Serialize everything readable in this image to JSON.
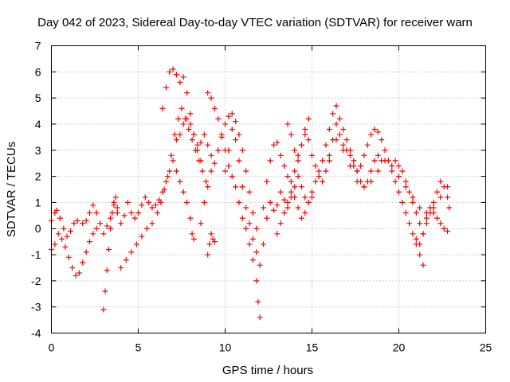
{
  "chart_data": {
    "type": "scatter",
    "title": "Day 042 of 2023, Sidereal Day-to-day VTEC variation (SDTVAR) for receiver warn",
    "xlabel": "GPS time / hours",
    "ylabel": "SDTVAR / TECUs",
    "xlim": [
      0,
      25
    ],
    "ylim": [
      -4,
      7
    ],
    "xticks": [
      0,
      5,
      10,
      15,
      20,
      25
    ],
    "yticks": [
      -4,
      -3,
      -2,
      -1,
      0,
      1,
      2,
      3,
      4,
      5,
      6,
      7
    ],
    "grid": true,
    "marker": "+",
    "color": "#ff0000",
    "series": [
      {
        "name": "trace-1",
        "points": [
          [
            0.0,
            -0.8
          ],
          [
            0.2,
            -0.6
          ],
          [
            0.4,
            -0.2
          ],
          [
            0.6,
            -0.4
          ],
          [
            0.8,
            -0.7
          ],
          [
            1.0,
            -1.1
          ],
          [
            1.2,
            -1.5
          ],
          [
            1.4,
            -1.8
          ],
          [
            1.6,
            -1.7
          ],
          [
            1.8,
            -1.3
          ],
          [
            2.0,
            -0.9
          ],
          [
            2.2,
            -0.5
          ],
          [
            2.4,
            -0.2
          ],
          [
            2.6,
            0.0
          ]
        ]
      },
      {
        "name": "trace-2",
        "points": [
          [
            0.0,
            0.3
          ],
          [
            0.2,
            0.6
          ],
          [
            0.3,
            0.7
          ],
          [
            0.5,
            0.4
          ],
          [
            0.7,
            0.0
          ],
          [
            0.9,
            -0.3
          ],
          [
            1.1,
            -0.1
          ],
          [
            1.3,
            0.2
          ],
          [
            1.5,
            0.3
          ],
          [
            1.8,
            0.2
          ],
          [
            2.0,
            0.3
          ]
        ]
      },
      {
        "name": "trace-3",
        "points": [
          [
            2.2,
            0.6
          ],
          [
            2.4,
            0.9
          ],
          [
            2.6,
            0.6
          ],
          [
            2.8,
            0.2
          ],
          [
            3.0,
            -0.2
          ],
          [
            3.2,
            0.1
          ],
          [
            3.4,
            0.4
          ],
          [
            3.6,
            0.9
          ],
          [
            3.8,
            0.6
          ],
          [
            4.0,
            0.2
          ],
          [
            4.2,
            0.5
          ],
          [
            4.4,
            1.0
          ],
          [
            4.6,
            0.6
          ],
          [
            4.8,
            0.4
          ],
          [
            5.0,
            0.6
          ],
          [
            5.2,
            0.9
          ],
          [
            5.4,
            1.2
          ],
          [
            5.6,
            1.0
          ],
          [
            5.8,
            0.8
          ],
          [
            6.0,
            0.9
          ],
          [
            6.2,
            1.1
          ],
          [
            6.4,
            1.4
          ],
          [
            6.6,
            1.8
          ],
          [
            6.8,
            2.2
          ],
          [
            7.0,
            2.6
          ],
          [
            7.2,
            2.2
          ],
          [
            7.4,
            1.8
          ],
          [
            7.6,
            1.4
          ],
          [
            7.8,
            1.0
          ],
          [
            8.0,
            0.4
          ],
          [
            8.1,
            -0.2
          ]
        ]
      },
      {
        "name": "trace-4",
        "points": [
          [
            3.0,
            -3.1
          ],
          [
            3.1,
            -2.4
          ],
          [
            3.2,
            -1.6
          ],
          [
            3.3,
            -0.8
          ],
          [
            3.4,
            0.0
          ],
          [
            3.5,
            0.6
          ],
          [
            3.6,
            1.0
          ],
          [
            3.7,
            1.2
          ],
          [
            3.8,
            0.8
          ]
        ]
      },
      {
        "name": "trace-5",
        "points": [
          [
            4.0,
            -1.5
          ],
          [
            4.3,
            -1.2
          ],
          [
            4.6,
            -0.9
          ],
          [
            4.9,
            -0.6
          ],
          [
            5.2,
            -0.3
          ],
          [
            5.5,
            0.0
          ],
          [
            5.8,
            0.2
          ],
          [
            6.1,
            0.6
          ],
          [
            6.3,
            1.0
          ],
          [
            6.5,
            1.5
          ],
          [
            6.7,
            2.0
          ],
          [
            6.9,
            2.8
          ],
          [
            7.1,
            3.6
          ],
          [
            7.3,
            4.2
          ],
          [
            7.5,
            4.6
          ],
          [
            7.7,
            4.2
          ],
          [
            7.9,
            3.8
          ],
          [
            8.1,
            3.4
          ],
          [
            8.3,
            3.0
          ],
          [
            8.5,
            2.6
          ],
          [
            8.7,
            2.2
          ],
          [
            8.9,
            1.8
          ]
        ]
      },
      {
        "name": "trace-6",
        "points": [
          [
            6.4,
            4.6
          ],
          [
            6.6,
            5.4
          ],
          [
            6.8,
            6.0
          ],
          [
            7.0,
            6.1
          ],
          [
            7.2,
            5.9
          ],
          [
            7.4,
            5.6
          ],
          [
            7.6,
            5.8
          ],
          [
            7.8,
            5.2
          ],
          [
            8.0,
            4.4
          ],
          [
            8.2,
            3.6
          ],
          [
            8.4,
            3.0
          ],
          [
            8.6,
            2.6
          ]
        ]
      },
      {
        "name": "trace-7",
        "points": [
          [
            7.2,
            3.4
          ],
          [
            7.4,
            3.6
          ],
          [
            7.6,
            4.0
          ],
          [
            7.8,
            4.2
          ],
          [
            8.0,
            4.0
          ],
          [
            8.2,
            3.6
          ],
          [
            8.4,
            3.2
          ],
          [
            8.6,
            3.3
          ],
          [
            8.8,
            3.6
          ],
          [
            9.0,
            3.2
          ],
          [
            9.2,
            2.8
          ]
        ]
      },
      {
        "name": "trace-8",
        "points": [
          [
            8.2,
            -0.4
          ],
          [
            8.6,
            0.2
          ],
          [
            8.8,
            1.0
          ],
          [
            9.0,
            1.6
          ],
          [
            9.2,
            2.2
          ],
          [
            9.4,
            2.5
          ],
          [
            9.6,
            3.0
          ],
          [
            9.8,
            3.5
          ],
          [
            10.0,
            4.0
          ],
          [
            10.2,
            4.3
          ],
          [
            10.4,
            4.4
          ],
          [
            10.6,
            4.1
          ],
          [
            10.8,
            3.6
          ],
          [
            11.0,
            3.0
          ],
          [
            11.2,
            2.2
          ],
          [
            11.4,
            1.4
          ],
          [
            11.6,
            0.6
          ],
          [
            11.8,
            0.0
          ]
        ]
      },
      {
        "name": "trace-9",
        "points": [
          [
            9.0,
            -1.0
          ],
          [
            9.1,
            -0.6
          ],
          [
            9.2,
            -0.2
          ],
          [
            9.3,
            -0.4
          ],
          [
            9.4,
            -0.5
          ]
        ]
      },
      {
        "name": "trace-10",
        "points": [
          [
            9.0,
            5.2
          ],
          [
            9.2,
            5.0
          ],
          [
            9.4,
            4.6
          ],
          [
            9.6,
            4.2
          ],
          [
            9.8,
            3.6
          ],
          [
            10.0,
            3.0
          ],
          [
            10.2,
            2.4
          ],
          [
            10.4,
            2.0
          ],
          [
            10.6,
            1.6
          ],
          [
            10.8,
            1.0
          ],
          [
            11.0,
            0.4
          ],
          [
            11.2,
            0.0
          ],
          [
            11.4,
            -0.6
          ],
          [
            11.6,
            -1.2
          ],
          [
            11.8,
            -2.0
          ],
          [
            11.9,
            -2.8
          ],
          [
            12.0,
            -3.4
          ]
        ]
      },
      {
        "name": "trace-11",
        "points": [
          [
            10.0,
            2.2
          ],
          [
            10.2,
            3.0
          ],
          [
            10.4,
            3.8
          ],
          [
            10.6,
            3.4
          ],
          [
            10.8,
            2.6
          ],
          [
            11.0,
            1.6
          ],
          [
            11.2,
            0.8
          ],
          [
            11.4,
            0.2
          ],
          [
            11.6,
            -0.4
          ],
          [
            11.8,
            -0.9
          ],
          [
            12.0,
            -1.4
          ],
          [
            12.2,
            -0.6
          ],
          [
            12.4,
            0.4
          ],
          [
            12.6,
            1.0
          ],
          [
            12.8,
            0.7
          ],
          [
            13.0,
            0.9
          ],
          [
            13.2,
            1.4
          ],
          [
            13.4,
            1.1
          ],
          [
            13.6,
            0.8
          ],
          [
            13.8,
            1.2
          ],
          [
            14.0,
            1.6
          ],
          [
            14.2,
            2.0
          ],
          [
            14.4,
            1.6
          ],
          [
            14.6,
            1.2
          ],
          [
            14.8,
            1.0
          ],
          [
            15.0,
            1.4
          ],
          [
            15.2,
            1.8
          ],
          [
            15.4,
            2.2
          ],
          [
            15.6,
            2.6
          ],
          [
            15.8,
            3.2
          ],
          [
            16.0,
            3.8
          ],
          [
            16.2,
            4.4
          ],
          [
            16.4,
            4.7
          ],
          [
            16.6,
            4.2
          ],
          [
            16.8,
            3.8
          ],
          [
            17.0,
            3.4
          ],
          [
            17.2,
            3.0
          ],
          [
            17.4,
            2.6
          ],
          [
            17.6,
            2.2
          ],
          [
            17.8,
            1.8
          ],
          [
            18.0,
            1.6
          ],
          [
            18.2,
            1.8
          ],
          [
            18.4,
            2.2
          ],
          [
            18.6,
            2.6
          ],
          [
            18.8,
            2.8
          ],
          [
            19.0,
            2.6
          ]
        ]
      },
      {
        "name": "trace-12",
        "points": [
          [
            12.2,
            0.8
          ],
          [
            12.4,
            1.8
          ],
          [
            12.6,
            2.6
          ],
          [
            12.8,
            3.2
          ],
          [
            13.0,
            3.3
          ],
          [
            13.2,
            2.8
          ],
          [
            13.4,
            2.4
          ],
          [
            13.6,
            2.0
          ],
          [
            13.8,
            1.8
          ],
          [
            14.0,
            2.2
          ],
          [
            14.2,
            2.6
          ],
          [
            14.4,
            3.2
          ],
          [
            14.6,
            3.8
          ],
          [
            14.8,
            3.4
          ],
          [
            15.0,
            2.8
          ],
          [
            15.2,
            2.4
          ],
          [
            15.4,
            2.0
          ],
          [
            15.6,
            1.8
          ],
          [
            15.8,
            2.2
          ],
          [
            16.0,
            2.8
          ],
          [
            16.2,
            3.4
          ],
          [
            16.4,
            4.0
          ],
          [
            16.6,
            3.6
          ],
          [
            16.8,
            3.2
          ],
          [
            17.0,
            3.0
          ],
          [
            17.2,
            2.8
          ],
          [
            17.4,
            2.4
          ],
          [
            17.6,
            2.2
          ],
          [
            17.8,
            2.4
          ],
          [
            18.0,
            2.8
          ],
          [
            18.2,
            3.2
          ],
          [
            18.4,
            3.6
          ],
          [
            18.6,
            3.8
          ],
          [
            18.8,
            3.7
          ],
          [
            19.0,
            3.4
          ],
          [
            19.2,
            3.0
          ],
          [
            19.4,
            2.6
          ],
          [
            19.6,
            2.2
          ],
          [
            19.8,
            1.8
          ],
          [
            20.0,
            1.4
          ],
          [
            20.2,
            1.0
          ],
          [
            20.4,
            0.6
          ],
          [
            20.6,
            0.2
          ],
          [
            20.8,
            -0.2
          ],
          [
            21.0,
            -0.6
          ],
          [
            21.2,
            -1.0
          ],
          [
            21.4,
            -1.4
          ]
        ]
      },
      {
        "name": "trace-13",
        "points": [
          [
            13.0,
            -0.2
          ],
          [
            13.2,
            0.2
          ],
          [
            13.4,
            0.6
          ],
          [
            13.6,
            1.0
          ],
          [
            13.8,
            1.4
          ],
          [
            14.0,
            1.2
          ],
          [
            14.2,
            0.8
          ],
          [
            14.4,
            0.4
          ],
          [
            14.6,
            0.6
          ],
          [
            14.8,
            1.0
          ],
          [
            15.0,
            1.2
          ]
        ]
      },
      {
        "name": "trace-14",
        "points": [
          [
            13.6,
            4.0
          ],
          [
            13.8,
            3.6
          ],
          [
            14.0,
            3.0
          ],
          [
            14.2,
            2.8
          ],
          [
            14.4,
            3.2
          ],
          [
            14.6,
            3.6
          ],
          [
            14.8,
            4.2
          ]
        ]
      },
      {
        "name": "trace-15",
        "points": [
          [
            16.0,
            2.6
          ],
          [
            16.4,
            3.4
          ],
          [
            16.8,
            3.0
          ],
          [
            17.2,
            2.4
          ],
          [
            17.6,
            1.8
          ],
          [
            18.0,
            1.6
          ],
          [
            18.4,
            1.8
          ],
          [
            18.8,
            2.2
          ],
          [
            19.2,
            2.6
          ],
          [
            19.6,
            2.4
          ],
          [
            20.0,
            2.0
          ],
          [
            20.4,
            1.6
          ],
          [
            20.8,
            1.2
          ],
          [
            21.2,
            0.8
          ],
          [
            21.6,
            0.6
          ],
          [
            22.0,
            0.8
          ],
          [
            22.4,
            1.2
          ],
          [
            22.8,
            1.6
          ]
        ]
      },
      {
        "name": "trace-16",
        "points": [
          [
            19.8,
            2.6
          ],
          [
            20.0,
            2.4
          ],
          [
            20.2,
            2.2
          ],
          [
            20.4,
            1.8
          ],
          [
            20.6,
            1.4
          ],
          [
            20.8,
            1.0
          ],
          [
            21.0,
            0.6
          ],
          [
            21.2,
            0.2
          ],
          [
            21.4,
            -0.2
          ],
          [
            21.6,
            0.2
          ],
          [
            21.8,
            0.6
          ],
          [
            22.0,
            1.0
          ],
          [
            22.2,
            1.4
          ],
          [
            22.4,
            1.8
          ],
          [
            22.6,
            1.6
          ],
          [
            22.8,
            1.2
          ],
          [
            22.9,
            0.8
          ]
        ]
      },
      {
        "name": "trace-17",
        "points": [
          [
            21.0,
            -0.4
          ],
          [
            21.2,
            -0.6
          ],
          [
            21.4,
            -0.2
          ],
          [
            21.6,
            0.4
          ],
          [
            21.8,
            0.8
          ],
          [
            22.0,
            0.6
          ],
          [
            22.2,
            0.4
          ],
          [
            22.4,
            0.2
          ],
          [
            22.6,
            0.0
          ],
          [
            22.8,
            -0.1
          ]
        ]
      }
    ]
  }
}
